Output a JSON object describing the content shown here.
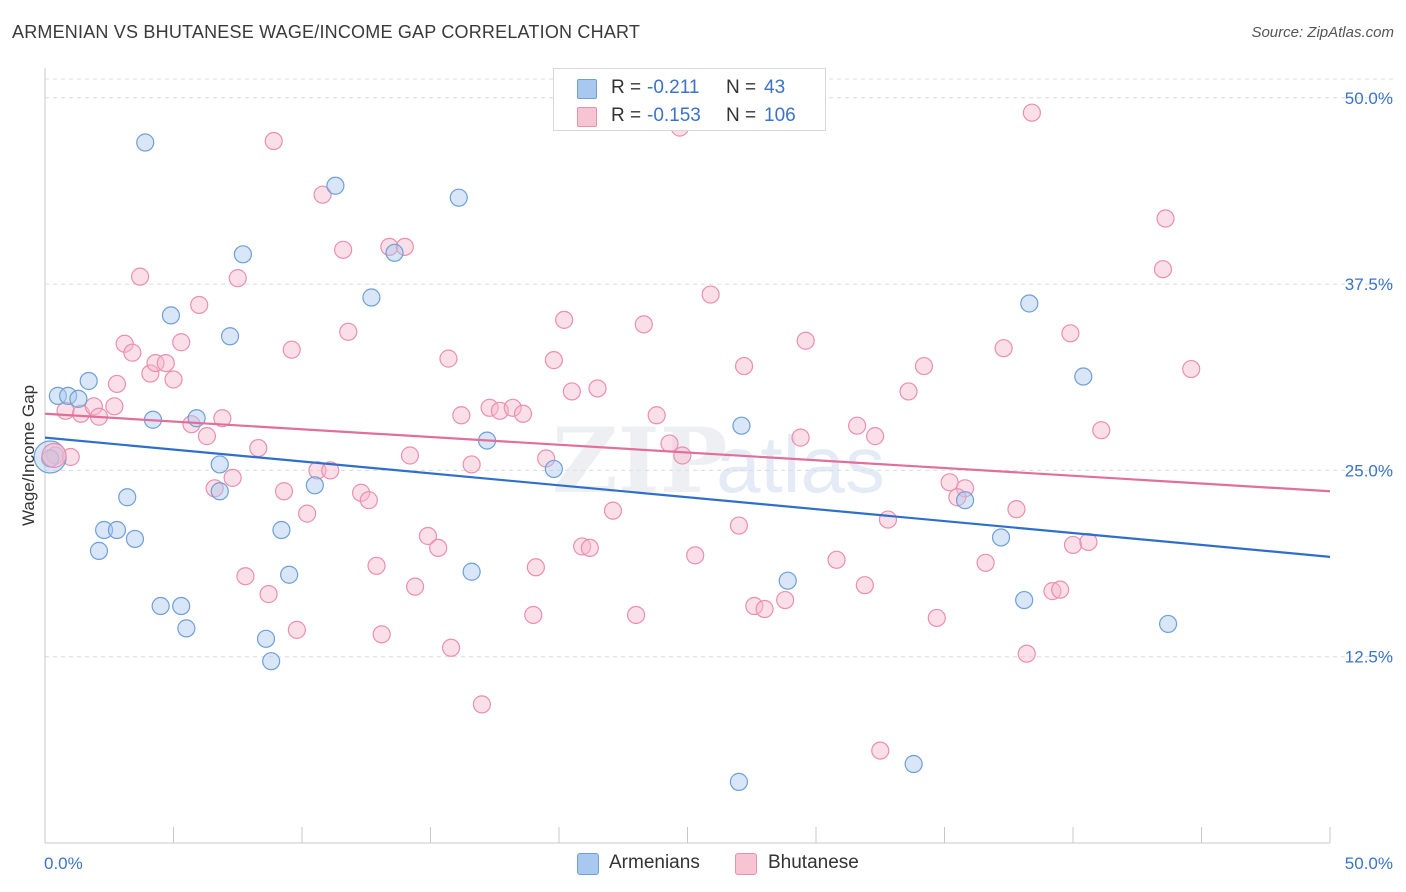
{
  "header": {
    "title": "ARMENIAN VS BHUTANESE WAGE/INCOME GAP CORRELATION CHART",
    "source": "Source: ZipAtlas.com"
  },
  "legend": {
    "rows": [
      {
        "r_label": "R =",
        "r_value": "-0.211",
        "n_label": "N =",
        "n_value": "43"
      },
      {
        "r_label": "R =",
        "r_value": "-0.153",
        "n_label": "N =",
        "n_value": "106"
      }
    ]
  },
  "bottom_legend": {
    "armenians": "Armenians",
    "bhutanese": "Bhutanese"
  },
  "colors": {
    "armenian_fill": "#a9c8f0",
    "armenian_stroke": "#6f9fd8",
    "armenian_line": "#2f6fcc",
    "bhutanese_fill": "#f7b8cc",
    "bhutanese_stroke": "#eb8fae",
    "bhutanese_line": "#e0709a",
    "tick_label": "#3a73c8",
    "grid": "#dcdcdc"
  },
  "chart_data": {
    "type": "scatter",
    "title": "ARMENIAN VS BHUTANESE WAGE/INCOME GAP CORRELATION CHART",
    "xlabel": "",
    "ylabel": "Wage/Income Gap",
    "xlim": [
      0,
      50
    ],
    "ylim": [
      0,
      52
    ],
    "x_tick_labels": [
      "0.0%",
      "50.0%"
    ],
    "y_ticks": [
      12.5,
      25.0,
      37.5,
      50.0
    ],
    "y_tick_labels": [
      "12.5%",
      "25.0%",
      "37.5%",
      "50.0%"
    ],
    "grid": true,
    "legend_position": "top-center",
    "watermark": "ZIPatlas",
    "series": [
      {
        "name": "Armenians",
        "color": "#a9c8f0",
        "r": -0.211,
        "n": 43,
        "trend": {
          "x": [
            0,
            50
          ],
          "y": [
            27.2,
            19.2
          ]
        },
        "points": [
          [
            0.2,
            25.8
          ],
          [
            0.5,
            30.0
          ],
          [
            0.9,
            30.0
          ],
          [
            1.3,
            29.8
          ],
          [
            1.7,
            31.0
          ],
          [
            2.1,
            19.6
          ],
          [
            2.3,
            21.0
          ],
          [
            2.8,
            21.0
          ],
          [
            3.2,
            23.2
          ],
          [
            3.5,
            20.4
          ],
          [
            3.9,
            47.0
          ],
          [
            4.2,
            28.4
          ],
          [
            4.5,
            15.9
          ],
          [
            4.9,
            35.4
          ],
          [
            5.3,
            15.9
          ],
          [
            5.5,
            14.4
          ],
          [
            5.9,
            28.5
          ],
          [
            6.8,
            23.6
          ],
          [
            6.8,
            25.4
          ],
          [
            7.2,
            34.0
          ],
          [
            7.7,
            39.5
          ],
          [
            8.6,
            13.7
          ],
          [
            8.8,
            12.2
          ],
          [
            9.2,
            21.0
          ],
          [
            9.5,
            18.0
          ],
          [
            10.5,
            24.0
          ],
          [
            11.3,
            44.1
          ],
          [
            12.7,
            36.6
          ],
          [
            13.6,
            39.6
          ],
          [
            16.1,
            43.3
          ],
          [
            16.6,
            18.2
          ],
          [
            17.2,
            27.0
          ],
          [
            19.8,
            25.1
          ],
          [
            27.0,
            4.1
          ],
          [
            27.1,
            28.0
          ],
          [
            28.9,
            17.6
          ],
          [
            33.8,
            5.3
          ],
          [
            35.8,
            23.0
          ],
          [
            37.2,
            20.5
          ],
          [
            38.1,
            16.3
          ],
          [
            38.3,
            36.2
          ],
          [
            40.4,
            31.3
          ],
          [
            43.7,
            14.7
          ]
        ]
      },
      {
        "name": "Bhutanese",
        "color": "#f7b8cc",
        "r": -0.153,
        "n": 106,
        "trend": {
          "x": [
            0,
            50
          ],
          "y": [
            28.8,
            23.6
          ]
        },
        "points": [
          [
            0.4,
            26.0
          ],
          [
            1.0,
            25.9
          ],
          [
            0.8,
            29.0
          ],
          [
            1.4,
            28.8
          ],
          [
            1.9,
            29.3
          ],
          [
            2.1,
            28.6
          ],
          [
            2.7,
            29.3
          ],
          [
            2.8,
            30.8
          ],
          [
            3.1,
            33.5
          ],
          [
            3.4,
            32.9
          ],
          [
            3.7,
            38.0
          ],
          [
            4.1,
            31.5
          ],
          [
            4.3,
            32.2
          ],
          [
            4.7,
            32.2
          ],
          [
            5.0,
            31.1
          ],
          [
            5.3,
            33.6
          ],
          [
            5.7,
            28.1
          ],
          [
            6.0,
            36.1
          ],
          [
            6.3,
            27.3
          ],
          [
            6.6,
            23.8
          ],
          [
            6.9,
            28.5
          ],
          [
            7.3,
            24.5
          ],
          [
            7.5,
            37.9
          ],
          [
            7.8,
            17.9
          ],
          [
            8.3,
            26.5
          ],
          [
            8.7,
            16.7
          ],
          [
            8.9,
            47.1
          ],
          [
            9.3,
            23.6
          ],
          [
            9.6,
            33.1
          ],
          [
            9.8,
            14.3
          ],
          [
            10.2,
            22.1
          ],
          [
            10.6,
            25.0
          ],
          [
            10.8,
            43.5
          ],
          [
            11.1,
            25.0
          ],
          [
            11.6,
            39.8
          ],
          [
            11.8,
            34.3
          ],
          [
            12.3,
            23.5
          ],
          [
            12.6,
            23.0
          ],
          [
            12.9,
            18.6
          ],
          [
            13.1,
            14.0
          ],
          [
            13.4,
            40.0
          ],
          [
            14.0,
            40.0
          ],
          [
            14.2,
            26.0
          ],
          [
            14.4,
            17.2
          ],
          [
            14.9,
            20.6
          ],
          [
            15.3,
            19.8
          ],
          [
            15.7,
            32.5
          ],
          [
            15.8,
            13.1
          ],
          [
            16.2,
            28.7
          ],
          [
            16.6,
            25.4
          ],
          [
            17.0,
            9.3
          ],
          [
            17.3,
            29.2
          ],
          [
            17.7,
            29.0
          ],
          [
            18.2,
            29.2
          ],
          [
            18.6,
            28.8
          ],
          [
            19.0,
            15.3
          ],
          [
            19.1,
            18.5
          ],
          [
            19.5,
            25.8
          ],
          [
            19.8,
            32.4
          ],
          [
            20.2,
            35.1
          ],
          [
            20.5,
            30.3
          ],
          [
            20.9,
            19.9
          ],
          [
            21.5,
            30.5
          ],
          [
            22.1,
            22.3
          ],
          [
            23.0,
            15.3
          ],
          [
            23.3,
            34.8
          ],
          [
            23.8,
            28.7
          ],
          [
            24.3,
            26.8
          ],
          [
            24.8,
            26.0
          ],
          [
            25.3,
            19.3
          ],
          [
            25.9,
            36.8
          ],
          [
            27.0,
            21.3
          ],
          [
            27.2,
            32.0
          ],
          [
            27.6,
            15.9
          ],
          [
            28.0,
            15.7
          ],
          [
            28.8,
            16.3
          ],
          [
            29.4,
            27.2
          ],
          [
            30.8,
            19.0
          ],
          [
            31.6,
            28.0
          ],
          [
            31.9,
            17.3
          ],
          [
            32.3,
            27.3
          ],
          [
            32.8,
            21.7
          ],
          [
            33.6,
            30.3
          ],
          [
            34.2,
            32.0
          ],
          [
            34.7,
            15.1
          ],
          [
            35.2,
            24.2
          ],
          [
            35.8,
            23.8
          ],
          [
            36.6,
            18.8
          ],
          [
            37.3,
            33.2
          ],
          [
            37.8,
            22.4
          ],
          [
            38.2,
            12.7
          ],
          [
            38.4,
            49.0
          ],
          [
            39.2,
            16.9
          ],
          [
            39.5,
            17.0
          ],
          [
            39.9,
            34.2
          ],
          [
            40.0,
            20.0
          ],
          [
            40.6,
            20.2
          ],
          [
            41.1,
            27.7
          ],
          [
            43.5,
            38.5
          ],
          [
            43.6,
            41.9
          ],
          [
            44.6,
            31.8
          ],
          [
            35.5,
            23.2
          ],
          [
            21.2,
            19.8
          ],
          [
            29.6,
            33.7
          ],
          [
            32.5,
            6.2
          ],
          [
            24.7,
            48.0
          ]
        ]
      }
    ]
  }
}
